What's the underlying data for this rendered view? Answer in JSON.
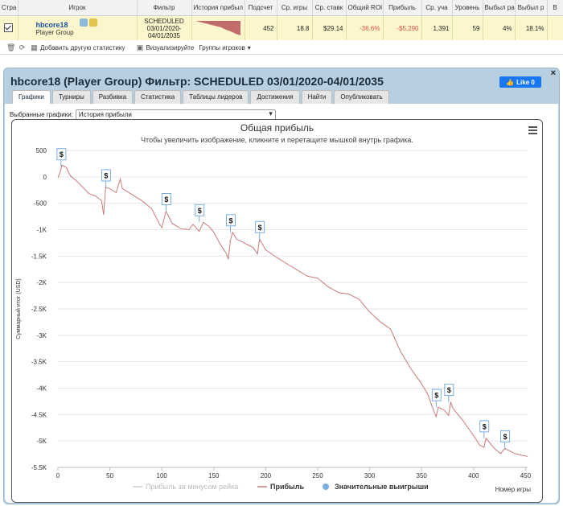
{
  "table": {
    "headers": [
      "Стра",
      "Игрок",
      "Фильтр",
      "История прибыл",
      "Подсчет",
      "Ср. игры",
      "Ср. ставк",
      "Общий ROI",
      "Прибыль",
      "Ср. уча",
      "Уровень",
      "Выбыл ра",
      "Выбыл р",
      "В"
    ],
    "row": {
      "player_name": "hbcore18",
      "player_group": "Player Group",
      "filter_line1": "SCHEDULED",
      "filter_line2": "03/01/2020-",
      "filter_line3": "04/01/2035",
      "count": "452",
      "avg_games": "18.8",
      "avg_stake": "$29.14",
      "roi": "-36.6%",
      "profit": "-$5,290",
      "avg_entrants": "1,391",
      "level": "59",
      "out_early": "4%",
      "out_late": "18.1%"
    }
  },
  "toolbar": {
    "add_stats": "Добавить другую статистику",
    "visualize": "Визуализируйте",
    "groups": "Группы игроков"
  },
  "panel": {
    "title": "hbcore18 (Player Group) Фильтр: SCHEDULED 03/01/2020-04/01/2035",
    "like_label": "Like 0",
    "close": "×",
    "tabs": [
      "Графики",
      "Турниры",
      "Разбивка",
      "Статистика",
      "Таблицы лидеров",
      "Достижения",
      "Найти",
      "Опубликовать"
    ],
    "select_label": "Выбранные графики:",
    "select_value": "История прибыли"
  },
  "chart_data": {
    "type": "line",
    "title": "Общая прибыль",
    "subtitle": "Чтобы увеличить изображение, кликните и перетащите мышкой внутрь графика.",
    "xlabel": "Номер игры",
    "ylabel": "Суммарный итог (USD)",
    "xlim": [
      0,
      452
    ],
    "ylim": [
      -5500,
      500
    ],
    "x_ticks": [
      "0",
      "50",
      "100",
      "150",
      "200",
      "250",
      "300",
      "350",
      "400",
      "450"
    ],
    "y_ticks": [
      "500",
      "0",
      "-500",
      "-1K",
      "-1.5K",
      "-2K",
      "-2.5K",
      "-3K",
      "-3.5K",
      "-4K",
      "-4.5K",
      "-5K",
      "-5.5K"
    ],
    "legend": [
      "Прибыль за минусом рейка",
      "Прибыль",
      "Значительные выигрыши"
    ],
    "colors": {
      "profit": "#c97b7b",
      "rake": "#cccccc",
      "bigwin": "#7aaee0"
    },
    "series": [
      {
        "name": "Прибыль",
        "points": [
          [
            0,
            -20
          ],
          [
            2,
            80
          ],
          [
            4,
            220
          ],
          [
            8,
            180
          ],
          [
            12,
            20
          ],
          [
            18,
            -80
          ],
          [
            24,
            -200
          ],
          [
            30,
            -320
          ],
          [
            36,
            -360
          ],
          [
            42,
            -450
          ],
          [
            44,
            -720
          ],
          [
            46,
            -200
          ],
          [
            50,
            -220
          ],
          [
            56,
            -300
          ],
          [
            60,
            -40
          ],
          [
            62,
            -220
          ],
          [
            70,
            -320
          ],
          [
            80,
            -440
          ],
          [
            90,
            -600
          ],
          [
            98,
            -900
          ],
          [
            100,
            -960
          ],
          [
            104,
            -650
          ],
          [
            110,
            -880
          ],
          [
            118,
            -980
          ],
          [
            126,
            -1000
          ],
          [
            130,
            -900
          ],
          [
            136,
            -1030
          ],
          [
            140,
            -860
          ],
          [
            146,
            -950
          ],
          [
            150,
            -1050
          ],
          [
            156,
            -1270
          ],
          [
            162,
            -1450
          ],
          [
            164,
            -1560
          ],
          [
            166,
            -1200
          ],
          [
            168,
            -1050
          ],
          [
            172,
            -1180
          ],
          [
            180,
            -1260
          ],
          [
            188,
            -1340
          ],
          [
            192,
            -1460
          ],
          [
            194,
            -1180
          ],
          [
            200,
            -1380
          ],
          [
            210,
            -1520
          ],
          [
            220,
            -1640
          ],
          [
            230,
            -1760
          ],
          [
            240,
            -1880
          ],
          [
            250,
            -1920
          ],
          [
            260,
            -2080
          ],
          [
            270,
            -2190
          ],
          [
            280,
            -2220
          ],
          [
            290,
            -2320
          ],
          [
            300,
            -2560
          ],
          [
            310,
            -2740
          ],
          [
            320,
            -2880
          ],
          [
            330,
            -3320
          ],
          [
            340,
            -3640
          ],
          [
            350,
            -3920
          ],
          [
            356,
            -4120
          ],
          [
            360,
            -4340
          ],
          [
            364,
            -4540
          ],
          [
            366,
            -4360
          ],
          [
            372,
            -4420
          ],
          [
            376,
            -4520
          ],
          [
            378,
            -4260
          ],
          [
            380,
            -4380
          ],
          [
            390,
            -4620
          ],
          [
            400,
            -4900
          ],
          [
            406,
            -5080
          ],
          [
            410,
            -5120
          ],
          [
            412,
            -4950
          ],
          [
            420,
            -5140
          ],
          [
            426,
            -5240
          ],
          [
            430,
            -5140
          ],
          [
            434,
            -5180
          ],
          [
            440,
            -5240
          ],
          [
            446,
            -5270
          ],
          [
            452,
            -5290
          ]
        ]
      }
    ],
    "big_wins": [
      [
        3,
        200
      ],
      [
        46,
        -200
      ],
      [
        104,
        -650
      ],
      [
        136,
        -860
      ],
      [
        166,
        -1050
      ],
      [
        194,
        -1180
      ],
      [
        364,
        -4360
      ],
      [
        376,
        -4260
      ],
      [
        410,
        -4950
      ],
      [
        430,
        -5140
      ]
    ],
    "big_win_label": "$"
  }
}
